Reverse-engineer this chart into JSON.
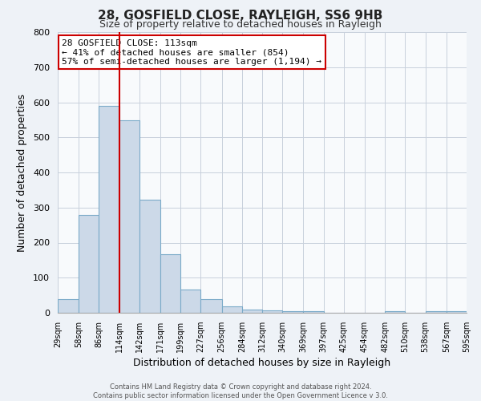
{
  "title": "28, GOSFIELD CLOSE, RAYLEIGH, SS6 9HB",
  "subtitle": "Size of property relative to detached houses in Rayleigh",
  "xlabel": "Distribution of detached houses by size in Rayleigh",
  "ylabel": "Number of detached properties",
  "bin_edges": [
    29,
    58,
    86,
    114,
    142,
    171,
    199,
    227,
    256,
    284,
    312,
    340,
    369,
    397,
    425,
    454,
    482,
    510,
    538,
    567,
    595
  ],
  "bar_heights": [
    38,
    278,
    590,
    548,
    322,
    168,
    67,
    38,
    18,
    10,
    8,
    5,
    5,
    0,
    0,
    0,
    5,
    0,
    5,
    5
  ],
  "bar_color": "#ccd9e8",
  "bar_edgecolor": "#7aaac8",
  "tick_labels": [
    "29sqm",
    "58sqm",
    "86sqm",
    "114sqm",
    "142sqm",
    "171sqm",
    "199sqm",
    "227sqm",
    "256sqm",
    "284sqm",
    "312sqm",
    "340sqm",
    "369sqm",
    "397sqm",
    "425sqm",
    "454sqm",
    "482sqm",
    "510sqm",
    "538sqm",
    "567sqm",
    "595sqm"
  ],
  "vline_x": 114,
  "vline_color": "#cc0000",
  "annotation_text": "28 GOSFIELD CLOSE: 113sqm\n← 41% of detached houses are smaller (854)\n57% of semi-detached houses are larger (1,194) →",
  "annotation_box_edgecolor": "#cc0000",
  "ylim": [
    0,
    800
  ],
  "yticks": [
    0,
    100,
    200,
    300,
    400,
    500,
    600,
    700,
    800
  ],
  "footer1": "Contains HM Land Registry data © Crown copyright and database right 2024.",
  "footer2": "Contains public sector information licensed under the Open Government Licence v 3.0.",
  "background_color": "#eef2f7",
  "plot_background": "#f8fafc",
  "grid_color": "#c8d0dc"
}
